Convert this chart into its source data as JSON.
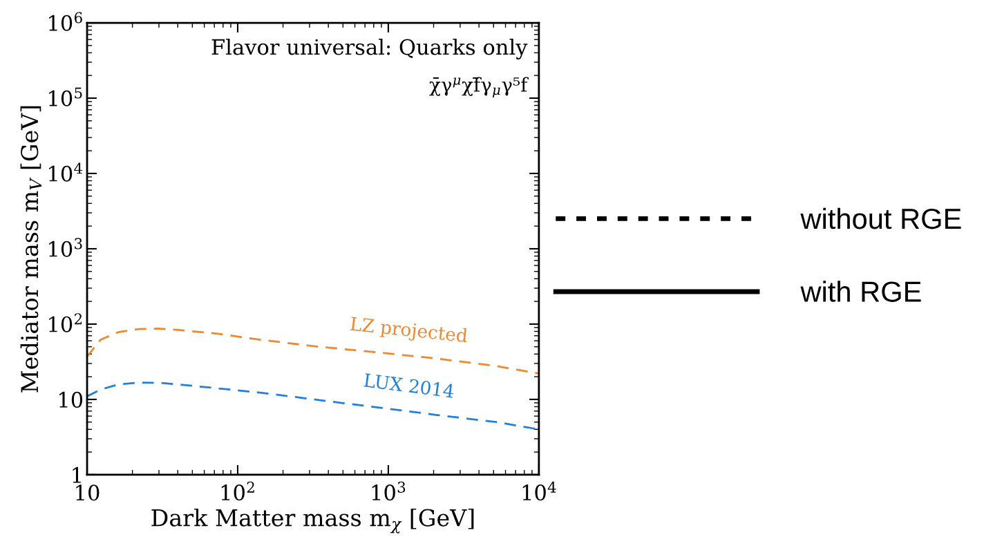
{
  "chart_data": {
    "type": "line",
    "xlabel": "Dark Matter mass m$_{χ}$ [GeV]",
    "ylabel": "Mediator mass m$_{V}$ [GeV]",
    "log": "xy",
    "xlim": [
      10,
      10000
    ],
    "xticks": [
      10,
      {
        "value": 100,
        "label": "10$^{2}$"
      },
      {
        "value": 1000,
        "label": "10$^{3}$"
      },
      {
        "value": 10000,
        "label": "10$^{4}$"
      }
    ],
    "ylim": [
      1,
      1000000
    ],
    "yticks": [
      1,
      10,
      {
        "value": 100,
        "label": "10$^{2}$"
      },
      {
        "value": 1000,
        "label": "10$^{3}$"
      },
      {
        "value": 10000,
        "label": "10$^{4}$"
      },
      {
        "value": 100000,
        "label": "10$^{5}$"
      },
      {
        "value": 1000000,
        "label": "10$^{6}$"
      }
    ],
    "x": [
      10,
      12.3,
      16.1,
      22.1,
      30.3,
      41.7,
      71.6,
      141,
      347,
      857,
      2113,
      5220,
      10000
    ],
    "series": [
      {
        "name": "LZ projected",
        "color": "#f0882e",
        "line_style": "dashed",
        "values": [
          37,
          62,
          78,
          86,
          87,
          83,
          75,
          62,
          50,
          42,
          34.8,
          27.7,
          22.1
        ]
      },
      {
        "name": "LUX 2014",
        "color": "#1f80e0",
        "line_style": "dashed",
        "values": [
          11.0,
          13.5,
          15.8,
          16.7,
          16.6,
          15.7,
          14.1,
          12.3,
          9.8,
          7.8,
          6.2,
          5.0,
          4.0
        ]
      },
      {
        "name": "without RGE",
        "color": "#000000",
        "line_style": "dashed",
        "values": [
          null,
          null,
          null,
          null,
          null,
          null,
          null,
          null,
          null,
          null,
          null,
          null,
          null
        ]
      },
      {
        "name": "with RGE",
        "color": "#000000",
        "line_style": "solid",
        "values": [
          null,
          null,
          null,
          null,
          null,
          null,
          null,
          null,
          null,
          null,
          null,
          null,
          null
        ]
      }
    ],
    "annotations": [
      "Flavor universal: Quarks only",
      "χ̄γ$^{μ}$χf̄γ$_{μ}$γ⁵f"
    ],
    "legend": "right",
    "grid": false,
    "marker": "none"
  }
}
